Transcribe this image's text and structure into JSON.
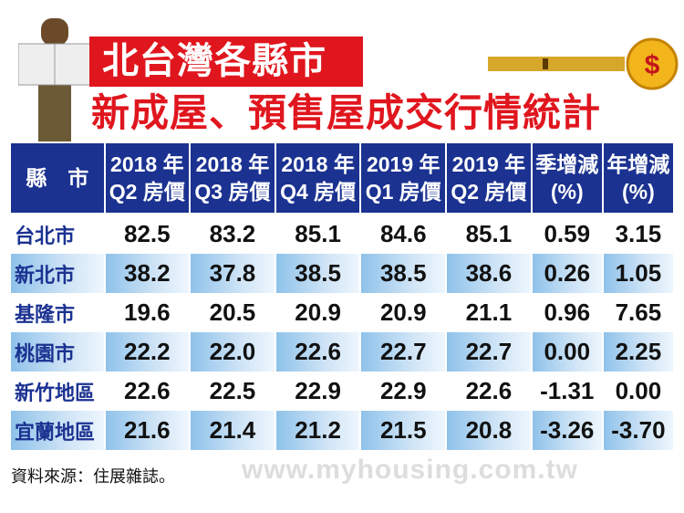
{
  "title": {
    "line1": "北台灣各縣市",
    "line2": "新成屋、預售屋成交行情統計"
  },
  "colors": {
    "header": "#1b3291",
    "title_red": "#e0161e",
    "row_band": "#8fc2ea"
  },
  "chart_data": {
    "type": "table",
    "columns": [
      "縣　市",
      "2018 年\nQ2 房價",
      "2018 年\nQ3 房價",
      "2018 年\nQ4 房價",
      "2019 年\nQ1 房價",
      "2019 年\nQ2 房價",
      "季增減\n(%)",
      "年增減\n(%)"
    ],
    "rows": [
      [
        "台北市",
        "82.5",
        "83.2",
        "85.1",
        "84.6",
        "85.1",
        "0.59",
        "3.15"
      ],
      [
        "新北市",
        "38.2",
        "37.8",
        "38.5",
        "38.5",
        "38.6",
        "0.26",
        "1.05"
      ],
      [
        "基隆市",
        "19.6",
        "20.5",
        "20.9",
        "20.9",
        "21.1",
        "0.96",
        "7.65"
      ],
      [
        "桃園市",
        "22.2",
        "22.0",
        "22.6",
        "22.7",
        "22.7",
        "0.00",
        "2.25"
      ],
      [
        "新竹地區",
        "22.6",
        "22.5",
        "22.9",
        "22.9",
        "22.6",
        "-1.31",
        "0.00"
      ],
      [
        "宜蘭地區",
        "21.6",
        "21.4",
        "21.2",
        "21.5",
        "20.8",
        "-3.26",
        "-3.70"
      ]
    ]
  },
  "source": "資料來源：住展雜誌。",
  "watermark": "www.myhousing.com.tw"
}
